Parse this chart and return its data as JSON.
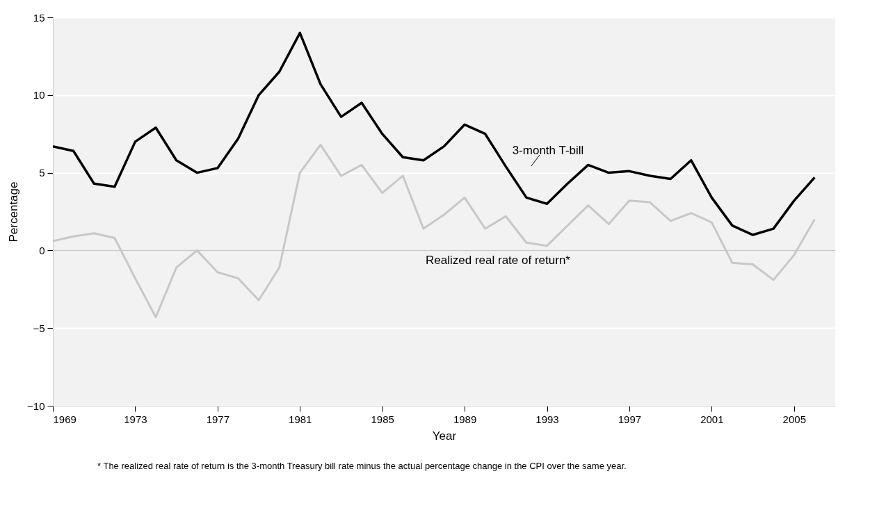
{
  "chart_data": {
    "type": "line",
    "xlabel": "Year",
    "ylabel": "Percentage",
    "x": [
      1969,
      1970,
      1971,
      1972,
      1973,
      1974,
      1975,
      1976,
      1977,
      1978,
      1979,
      1980,
      1981,
      1982,
      1983,
      1984,
      1985,
      1986,
      1987,
      1988,
      1989,
      1990,
      1991,
      1992,
      1993,
      1994,
      1995,
      1996,
      1997,
      1998,
      1999,
      2000,
      2001,
      2002,
      2003,
      2004,
      2005,
      2006
    ],
    "series": [
      {
        "name": "3-month T-bill",
        "color": "#000000",
        "values": [
          6.7,
          6.4,
          4.3,
          4.1,
          7.0,
          7.9,
          5.8,
          5.0,
          5.3,
          7.2,
          10.0,
          11.5,
          14.0,
          10.7,
          8.6,
          9.5,
          7.5,
          6.0,
          5.8,
          6.7,
          8.1,
          7.5,
          5.4,
          3.4,
          3.0,
          4.3,
          5.5,
          5.0,
          5.1,
          4.8,
          4.6,
          5.8,
          3.4,
          1.6,
          1.0,
          1.4,
          3.2,
          4.7
        ]
      },
      {
        "name": "Realized real rate of return*",
        "color": "#c8c8c8",
        "values": [
          0.6,
          0.9,
          1.1,
          0.8,
          -1.8,
          -4.3,
          -1.1,
          0.0,
          -1.4,
          -1.8,
          -3.2,
          -1.1,
          5.0,
          6.8,
          4.8,
          5.5,
          3.7,
          4.8,
          1.4,
          2.3,
          3.4,
          1.4,
          2.2,
          0.5,
          0.3,
          1.6,
          2.9,
          1.7,
          3.2,
          3.1,
          1.9,
          2.4,
          1.8,
          -0.8,
          -0.9,
          -1.9,
          -0.3,
          2.0
        ]
      }
    ],
    "xlim": [
      1969,
      2007
    ],
    "xticks": [
      1969,
      1973,
      1977,
      1981,
      1985,
      1989,
      1993,
      1997,
      2001,
      2005
    ],
    "ylim": [
      -10,
      15
    ],
    "yticks": [
      {
        "value": -10,
        "label": "−10"
      },
      {
        "value": -5,
        "label": "−5"
      },
      0,
      5,
      10,
      15
    ],
    "grid": "y",
    "ref_lines": [
      {
        "axis": "y",
        "value": 0,
        "color": "#c8c8c8"
      }
    ],
    "annotations": [
      "* The realized real rate of return is the 3-month Treasury bill rate minus the actual percentage change in the CPI over the same year."
    ]
  }
}
